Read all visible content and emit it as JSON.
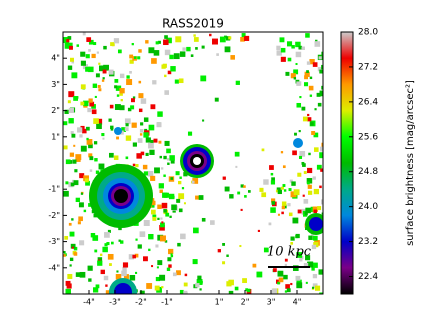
{
  "chart_data": {
    "type": "image",
    "title": "RASS2019",
    "xlim": [
      -5,
      5
    ],
    "ylim": [
      -5,
      5
    ],
    "xticks": [
      {
        "value": -4,
        "label": "-4\""
      },
      {
        "value": -3,
        "label": "-3\""
      },
      {
        "value": -2,
        "label": "-2\""
      },
      {
        "value": -1,
        "label": "-1\""
      },
      {
        "value": 1,
        "label": "1\""
      },
      {
        "value": 2,
        "label": "2\""
      },
      {
        "value": 3,
        "label": "3\""
      },
      {
        "value": 4,
        "label": "4\""
      }
    ],
    "yticks": [
      {
        "value": -4,
        "label": "-4\""
      },
      {
        "value": -3,
        "label": "-3\""
      },
      {
        "value": -2,
        "label": "-2\""
      },
      {
        "value": -1,
        "label": "-1\""
      },
      {
        "value": 1,
        "label": "1\""
      },
      {
        "value": 2,
        "label": "2\""
      },
      {
        "value": 3,
        "label": "3\""
      },
      {
        "value": 4,
        "label": "4\""
      }
    ],
    "colorbar": {
      "label": "surface brightness [mag/arcsec²]",
      "lim": [
        22.0,
        28.0
      ],
      "ticks": [
        {
          "value": 22.4,
          "label": "22.4"
        },
        {
          "value": 23.2,
          "label": "23.2"
        },
        {
          "value": 24,
          "label": "24.0"
        },
        {
          "value": 24.8,
          "label": "24.8"
        },
        {
          "value": 25.6,
          "label": "25.6"
        },
        {
          "value": 26.4,
          "label": "26.4"
        },
        {
          "value": 27.2,
          "label": "27.2"
        },
        {
          "value": 28,
          "label": "28.0"
        }
      ],
      "colors": [
        "#000000",
        "#7a0088",
        "#0000c8",
        "#0088dd",
        "#00aa88",
        "#00bb00",
        "#00ff00",
        "#ddee00",
        "#ff9900",
        "#ee0000",
        "#cccccc"
      ]
    },
    "annotation": "10 kpc"
  }
}
